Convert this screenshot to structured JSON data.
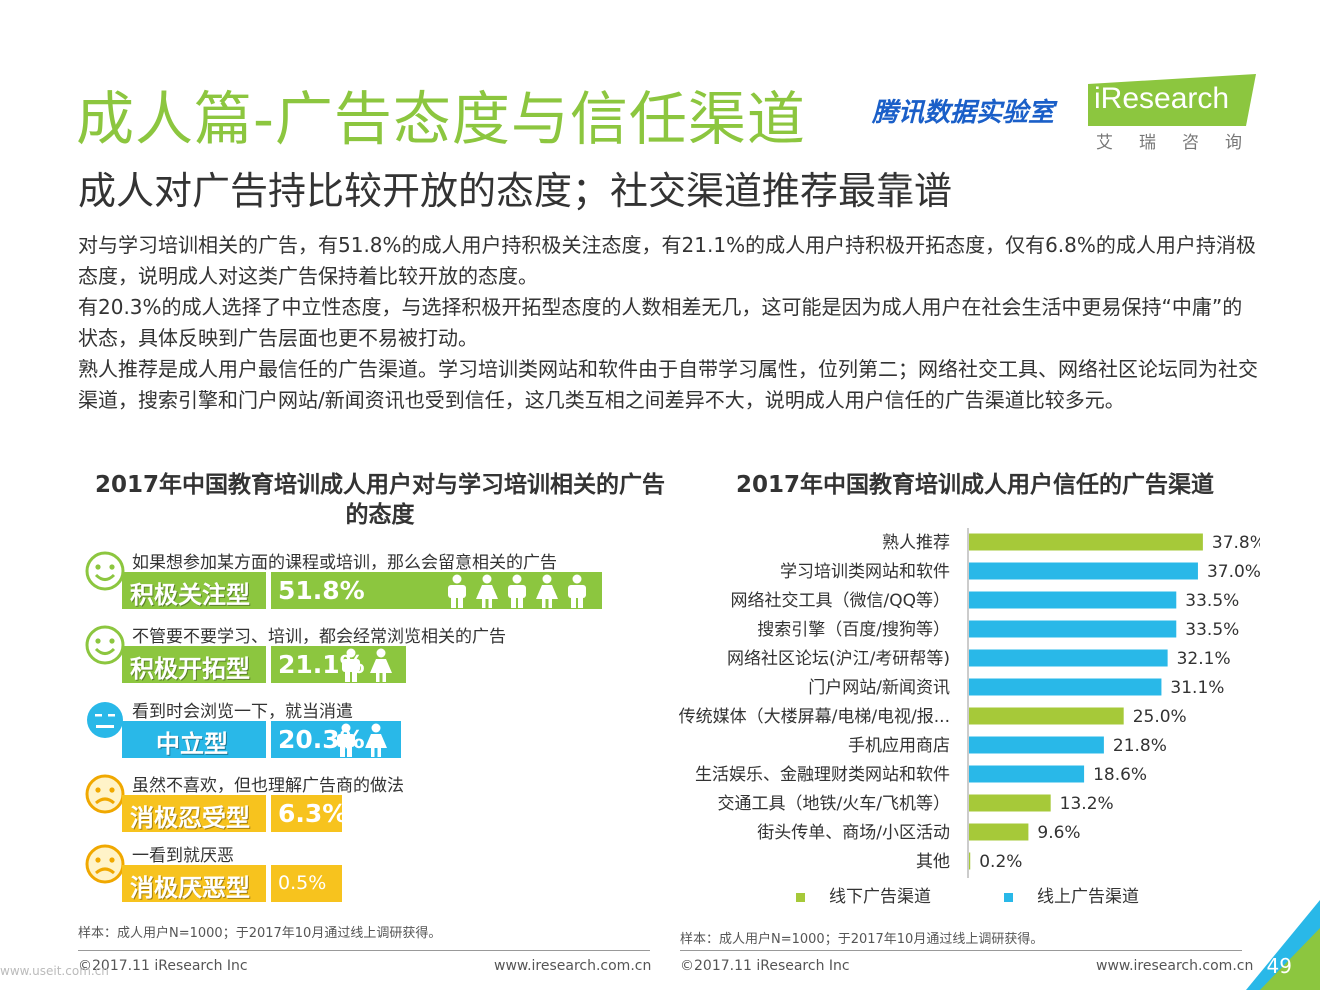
{
  "header": {
    "title": "成人篇-广告态度与信任渠道",
    "tencent_logo": "腾讯数据实验室",
    "iresearch_logo": "iResearch",
    "iresearch_cn": "艾瑞咨询"
  },
  "subtitle": "成人对广告持比较开放的态度；社交渠道推荐最靠谱",
  "paragraphs": [
    "对与学习培训相关的广告，有51.8%的成人用户持积极关注态度，有21.1%的成人用户持积极开拓态度，仅有6.8%的成人用户持消极态度，说明成人对这类广告保持着比较开放的态度。",
    "有20.3%的成人选择了中立性态度，与选择积极开拓型态度的人数相差无几，这可能是因为成人用户在社会生活中更易保持“中庸”的状态，具体反映到广告层面也更不易被打动。",
    "熟人推荐是成人用户最信任的广告渠道。学习培训类网站和软件由于自带学习属性，位列第二；网络社交工具、网络社区论坛同为社交渠道，搜索引擎和门户网站/新闻资讯也受到信任，这几类互相之间差异不大，说明成人用户信任的广告渠道比较多元。"
  ],
  "colors": {
    "green": "#8cc63f",
    "blue": "#29b8e8",
    "yellow": "#f7c31e",
    "title_green": "#8cc63f"
  },
  "chart_data": [
    {
      "type": "bar",
      "title": "2017年中国教育培训成人用户对与学习培训相关的广告的态度",
      "categories": [
        "积极关注型",
        "积极开拓型",
        "中立型",
        "消极忍受型",
        "消极厌恶型"
      ],
      "descriptions": [
        "如果想参加某方面的课程或培训，那么会留意相关的广告",
        "不管要不要学习、培训，都会经常浏览相关的广告",
        "看到时会浏览一下，就当消遣",
        "虽然不喜欢，但也理解广告商的做法",
        "一看到就厌恶"
      ],
      "values": [
        51.8,
        21.1,
        20.3,
        6.3,
        0.5
      ],
      "value_labels": [
        "51.8%",
        "21.1%",
        "20.3%",
        "6.3%",
        "0.5%"
      ],
      "people_icons": [
        5,
        2,
        2,
        0,
        0
      ],
      "bar_colors": [
        "#8cc63f",
        "#8cc63f",
        "#29b8e8",
        "#f7c31e",
        "#f7c31e"
      ],
      "face_icons": [
        "smile-face-icon",
        "smile-face-icon",
        "neutral-face-icon",
        "sad-face-icon",
        "sad-face-icon"
      ],
      "sample": "样本：成人用户N=1000；于2017年10月通过线上调研获得。"
    },
    {
      "type": "bar",
      "title": "2017年中国教育培训成人用户信任的广告渠道",
      "categories": [
        "熟人推荐",
        "学习培训类网站和软件",
        "网络社交工具（微信/QQ等）",
        "搜索引擎（百度/搜狗等）",
        "网络社区论坛(沪江/考研帮等)",
        "门户网站/新闻资讯",
        "传统媒体（大楼屏幕/电梯/电视/报...",
        "手机应用商店",
        "生活娱乐、金融理财类网站和软件",
        "交通工具（地铁/火车/飞机等）",
        "街头传单、商场/小区活动",
        "其他"
      ],
      "values": [
        37.8,
        37.0,
        33.5,
        33.5,
        32.1,
        31.1,
        25.0,
        21.8,
        18.6,
        13.2,
        9.6,
        0.2
      ],
      "value_labels": [
        "37.8%",
        "37.0%",
        "33.5%",
        "33.5%",
        "32.1%",
        "31.1%",
        "25.0%",
        "21.8%",
        "18.6%",
        "13.2%",
        "9.6%",
        "0.2%"
      ],
      "channel_type": [
        "offline",
        "online",
        "online",
        "online",
        "online",
        "online",
        "offline",
        "online",
        "online",
        "offline",
        "offline",
        "offline"
      ],
      "legend": [
        {
          "key": "offline",
          "name": "线下广告渠道",
          "color": "#a6c939"
        },
        {
          "key": "online",
          "name": "线上广告渠道",
          "color": "#29b8e8"
        }
      ],
      "xlim": [
        0,
        40
      ],
      "sample": "样本：成人用户N=1000；于2017年10月通过线上调研获得。"
    }
  ],
  "footer": {
    "copyright_left": "©2017.11 iResearch Inc",
    "url_left": "www.iresearch.com.cn",
    "copyright_right": "©2017.11 iResearch Inc",
    "url_right": "www.iresearch.com.cn",
    "page_number": "49",
    "watermark": "www.useit.com.cn"
  }
}
